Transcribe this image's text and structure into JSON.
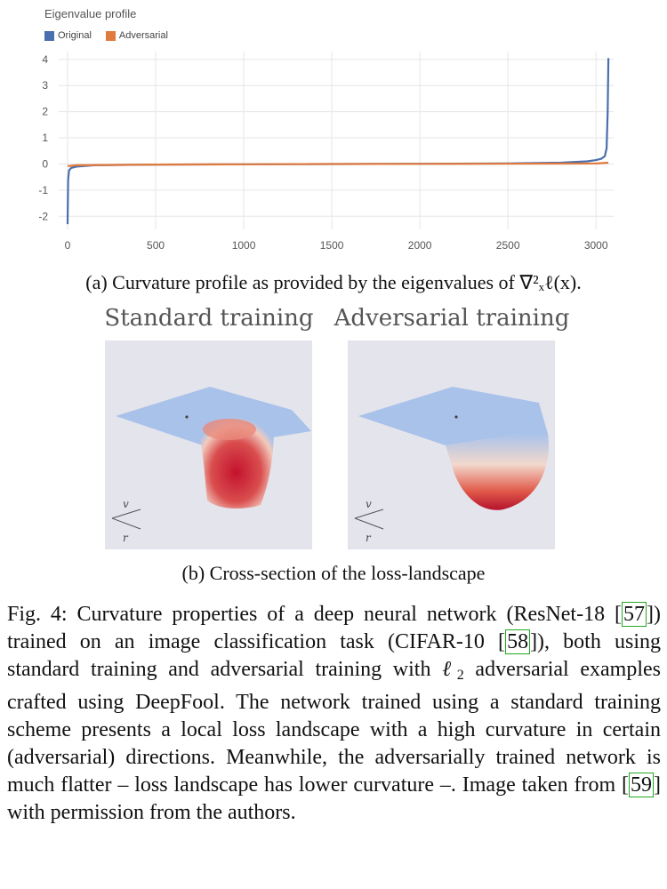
{
  "chart_data": {
    "type": "line",
    "title": "Eigenvalue profile",
    "legend_placement": "top-left",
    "series": [
      {
        "name": "Original",
        "color": "#4a6fae",
        "x": [
          0,
          3,
          8,
          20,
          50,
          150,
          500,
          1000,
          1500,
          2000,
          2500,
          2800,
          2950,
          3000,
          3030,
          3050,
          3060,
          3066,
          3070
        ],
        "y": [
          -2.3,
          -0.6,
          -0.25,
          -0.15,
          -0.1,
          -0.05,
          -0.02,
          -0.01,
          0,
          0.01,
          0.02,
          0.05,
          0.1,
          0.15,
          0.2,
          0.3,
          0.6,
          2.0,
          4.05
        ]
      },
      {
        "name": "Adversarial",
        "color": "#e07b3f",
        "x": [
          0,
          50,
          500,
          1000,
          1500,
          2000,
          2500,
          3000,
          3070
        ],
        "y": [
          -0.08,
          -0.05,
          -0.02,
          -0.01,
          0,
          0.005,
          0.01,
          0.02,
          0.05
        ]
      }
    ],
    "xticks": [
      "0",
      "500",
      "1000",
      "1500",
      "2000",
      "2500",
      "3000"
    ],
    "yticks": [
      "4",
      "3",
      "2",
      "1",
      "0",
      "-1",
      "-2"
    ],
    "xlim": [
      0,
      3100
    ],
    "ylim": [
      -2.5,
      4.3
    ],
    "grid": true
  },
  "caption_a": "(a) Curvature profile as provided by the eigenvalues of ∇²ₓℓ(x).",
  "panels": {
    "standard_title": "Standard training",
    "adversarial_title": "Adversarial training",
    "axis_v": "v",
    "axis_r": "r"
  },
  "caption_b": "(b) Cross-section of the loss-landscape",
  "body": {
    "part1": "Fig. 4: Curvature properties of a deep neural network (ResNet-18 [",
    "ref1": "57",
    "part2": "]) trained on an image classification task (CIFAR-10 [",
    "ref2": "58",
    "part3": "]), both using standard training and adversarial training with ",
    "ell": "ℓ",
    "ell_sub": "2",
    "part4": " adversarial examples crafted using DeepFool. The network trained using a standard training scheme presents a local loss landscape with a high curvature in certain (adversarial) directions. Meanwhile, the adversarially trained network is much flatter – loss landscape has lower curvature –. Image taken from [",
    "ref3": "59",
    "part5": "] with permission from the authors."
  }
}
